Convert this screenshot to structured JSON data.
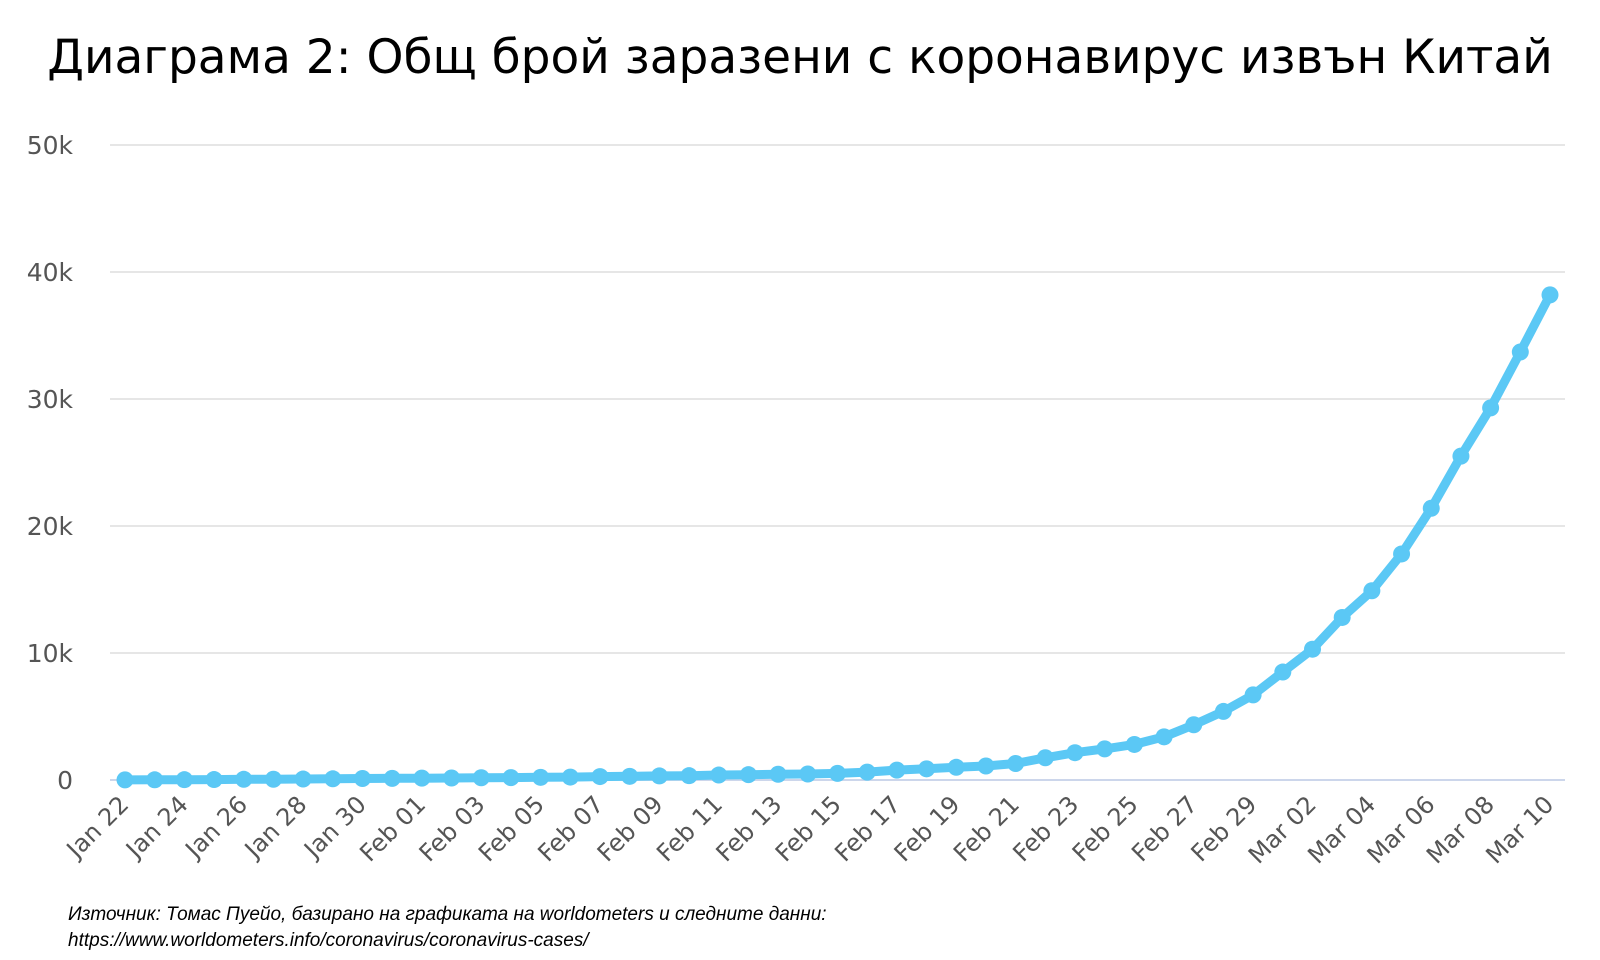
{
  "title": "Диаграма 2: Общ брой заразени с коронавирус извън Китай",
  "source": {
    "line1": "Източник: Томас Пуейо, базирано на графиката на worldometers и следните данни:",
    "line2": "https://www.worldometers.info/coronavirus/coronavirus-cases/"
  },
  "colors": {
    "line": "#5bc8f5",
    "grid": "#e6e6e6",
    "axis": "#ccd6eb",
    "tick_text": "#555555"
  },
  "chart_data": {
    "type": "line",
    "title": "Диаграма 2: Общ брой заразени с коронавирус извън Китай",
    "xlabel": "",
    "ylabel": "",
    "ylim": [
      0,
      50000
    ],
    "grid": true,
    "legend": "none",
    "y_ticks": [
      "0",
      "10k",
      "20k",
      "30k",
      "40k",
      "50k"
    ],
    "x_tick_labels": [
      "Jan 22",
      "Jan 24",
      "Jan 26",
      "Jan 28",
      "Jan 30",
      "Feb 01",
      "Feb 03",
      "Feb 05",
      "Feb 07",
      "Feb 09",
      "Feb 11",
      "Feb 13",
      "Feb 15",
      "Feb 17",
      "Feb 19",
      "Feb 21",
      "Feb 23",
      "Feb 25",
      "Feb 27",
      "Feb 29",
      "Mar 02",
      "Mar 04",
      "Mar 06",
      "Mar 08",
      "Mar 10"
    ],
    "x": [
      "Jan 22",
      "Jan 23",
      "Jan 24",
      "Jan 25",
      "Jan 26",
      "Jan 27",
      "Jan 28",
      "Jan 29",
      "Jan 30",
      "Jan 31",
      "Feb 01",
      "Feb 02",
      "Feb 03",
      "Feb 04",
      "Feb 05",
      "Feb 06",
      "Feb 07",
      "Feb 08",
      "Feb 09",
      "Feb 10",
      "Feb 11",
      "Feb 12",
      "Feb 13",
      "Feb 14",
      "Feb 15",
      "Feb 16",
      "Feb 17",
      "Feb 18",
      "Feb 19",
      "Feb 20",
      "Feb 21",
      "Feb 22",
      "Feb 23",
      "Feb 24",
      "Feb 25",
      "Feb 26",
      "Feb 27",
      "Feb 28",
      "Feb 29",
      "Mar 01",
      "Mar 02",
      "Mar 03",
      "Mar 04",
      "Mar 05",
      "Mar 06",
      "Mar 07",
      "Mar 08",
      "Mar 09",
      "Mar 10"
    ],
    "series": [
      {
        "values": [
          10,
          15,
          25,
          35,
          55,
          60,
          75,
          95,
          115,
          130,
          145,
          160,
          175,
          190,
          210,
          230,
          270,
          290,
          320,
          340,
          390,
          420,
          450,
          470,
          520,
          620,
          780,
          880,
          1000,
          1100,
          1300,
          1750,
          2150,
          2450,
          2800,
          3400,
          4350,
          5400,
          6700,
          8500,
          10300,
          12800,
          14900,
          17800,
          21400,
          25500,
          29300,
          33700,
          38200
        ]
      }
    ]
  }
}
